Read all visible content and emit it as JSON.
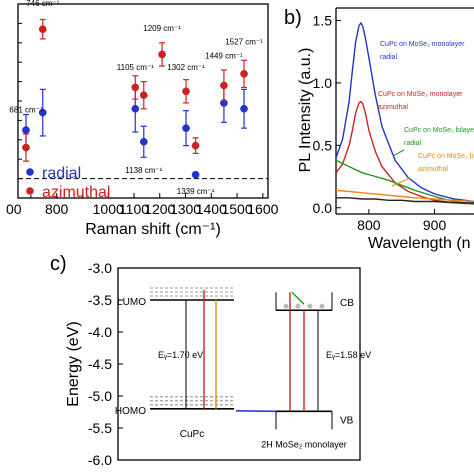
{
  "chart_data": [
    {
      "panel_label": "",
      "type": "scatter",
      "xlabel": "Raman shift (cm⁻¹)",
      "xlim": [
        650,
        1620
      ],
      "xticks": [
        800,
        1000,
        1100,
        1200,
        1300,
        1400,
        1500,
        1600
      ],
      "ylim": [
        0,
        10
      ],
      "legend": {
        "placement": "bottom-left",
        "entries": [
          "radial",
          "azimuthal"
        ]
      },
      "series": [
        {
          "name": "radial",
          "color": "#2233cc",
          "points": [
            {
              "x": 681,
              "y": 3.5,
              "err": 0.8
            },
            {
              "x": 746,
              "y": 4.4,
              "err": 1.2
            },
            {
              "x": 1105,
              "y": 4.6,
              "err": 1.2
            },
            {
              "x": 1138,
              "y": 2.9,
              "err": 0.8
            },
            {
              "x": 1302,
              "y": 3.6,
              "err": 0.9
            },
            {
              "x": 1339,
              "y": 1.2,
              "err": 0.0
            },
            {
              "x": 1449,
              "y": 4.9,
              "err": 1.0
            },
            {
              "x": 1527,
              "y": 4.6,
              "err": 1.0
            }
          ]
        },
        {
          "name": "azimuthal",
          "color": "#cc2222",
          "points": [
            {
              "x": 681,
              "y": 2.6,
              "err": 0.7
            },
            {
              "x": 746,
              "y": 8.7,
              "err": 0.5
            },
            {
              "x": 1105,
              "y": 5.7,
              "err": 0.6
            },
            {
              "x": 1138,
              "y": 5.3,
              "err": 0.7
            },
            {
              "x": 1209,
              "y": 7.4,
              "err": 0.6
            },
            {
              "x": 1302,
              "y": 5.5,
              "err": 0.6
            },
            {
              "x": 1339,
              "y": 2.7,
              "err": 0.4
            },
            {
              "x": 1449,
              "y": 5.8,
              "err": 0.8
            },
            {
              "x": 1527,
              "y": 6.4,
              "err": 0.7
            }
          ]
        }
      ],
      "peak_labels": [
        {
          "text": "746 cm⁻¹",
          "x": 746,
          "y": 9.9
        },
        {
          "text": "681 cm⁻¹",
          "x": 681,
          "y": 4.4
        },
        {
          "text": "1209 cm⁻¹",
          "x": 1209,
          "y": 8.6
        },
        {
          "text": "1105 cm⁻¹",
          "x": 1105,
          "y": 6.6
        },
        {
          "text": "1302 cm⁻¹",
          "x": 1302,
          "y": 6.6
        },
        {
          "text": "1449 cm⁻¹",
          "x": 1449,
          "y": 7.2
        },
        {
          "text": "1527 cm⁻¹",
          "x": 1527,
          "y": 7.9
        },
        {
          "text": "1138 cm⁻¹",
          "x": 1138,
          "y": 1.3
        },
        {
          "text": "1339 cm⁻¹",
          "x": 1339,
          "y": 0.2
        }
      ],
      "reference_line": {
        "y": 1.0,
        "style": "dashed"
      }
    },
    {
      "panel_label": "b)",
      "type": "line",
      "xlabel": "Wavelength (n",
      "ylabel": "PL Intensity (a.u.)",
      "xlim": [
        750,
        960
      ],
      "xticks": [
        800,
        900
      ],
      "ylim": [
        -0.05,
        1.6
      ],
      "yticks": [
        0.0,
        0.5,
        1.0,
        1.5
      ],
      "series": [
        {
          "name": "CuPc on MoSe₂ monolayer radial",
          "color": "#2233cc",
          "x": [
            750,
            760,
            770,
            775,
            780,
            785,
            788,
            791,
            795,
            800,
            810,
            820,
            840,
            860,
            880,
            900,
            930,
            960
          ],
          "y": [
            0.4,
            0.55,
            0.85,
            1.1,
            1.33,
            1.46,
            1.48,
            1.45,
            1.35,
            1.2,
            0.9,
            0.65,
            0.38,
            0.24,
            0.16,
            0.11,
            0.07,
            0.05
          ]
        },
        {
          "name": "CuPc on MoSe₂ monolayer azimuthal",
          "color": "#cc2222",
          "x": [
            750,
            760,
            770,
            775,
            780,
            785,
            788,
            791,
            795,
            800,
            810,
            820,
            840,
            860,
            880,
            900,
            930,
            960
          ],
          "y": [
            0.28,
            0.35,
            0.5,
            0.62,
            0.76,
            0.84,
            0.85,
            0.83,
            0.75,
            0.62,
            0.45,
            0.33,
            0.2,
            0.13,
            0.09,
            0.06,
            0.04,
            0.03
          ]
        },
        {
          "name": "CuPc on MoSe₂ bilayer radial",
          "color": "#229922",
          "x": [
            750,
            770,
            790,
            810,
            830,
            850,
            870,
            900,
            930,
            960
          ],
          "y": [
            0.38,
            0.33,
            0.28,
            0.25,
            0.22,
            0.18,
            0.14,
            0.09,
            0.05,
            0.03
          ]
        },
        {
          "name": "CuPc on MoSe₂ bilayer azimuthal",
          "color": "#ee8811",
          "x": [
            750,
            770,
            790,
            810,
            830,
            850,
            870,
            900,
            930,
            960
          ],
          "y": [
            0.14,
            0.13,
            0.12,
            0.11,
            0.1,
            0.09,
            0.08,
            0.07,
            0.06,
            0.05
          ]
        },
        {
          "name": "",
          "color": "#222222",
          "x": [
            750,
            770,
            790,
            810,
            830,
            850,
            870,
            900,
            930,
            960
          ],
          "y": [
            0.08,
            0.08,
            0.07,
            0.07,
            0.06,
            0.06,
            0.05,
            0.05,
            0.04,
            0.04
          ]
        }
      ],
      "legend_labels": [
        {
          "line1": "CuPc on MoSe₂ monolayer",
          "line2": "radial",
          "color": "#2233cc"
        },
        {
          "line1": "CuPc on MoSe₂ monolayer",
          "line2": "azimuthal",
          "color": "#cc2222"
        },
        {
          "line1": "CuPc on MoSe₂ bilayer",
          "line2": "radial",
          "color": "#229922"
        },
        {
          "line1": "CuPc on MoSe₂ bi",
          "line2": "azimuthal",
          "color": "#ee8811"
        }
      ]
    },
    {
      "panel_label": "c)",
      "type": "diagram",
      "ylabel": "Energy (eV)",
      "ylim": [
        -6.0,
        -3.0
      ],
      "yticks": [
        -3.0,
        -3.5,
        -4.0,
        -4.5,
        -5.0,
        -5.5,
        -6.0
      ],
      "levels": {
        "cupc_lumo": -3.5,
        "cupc_homo": -5.2,
        "mose2_cb": -3.66,
        "mose2_vb": -5.24
      },
      "labels": {
        "lumo": "LUMO",
        "homo": "HOMO",
        "cupc": "CuPc",
        "cb": "CB",
        "vb": "VB",
        "mose2": "2H MoSe₂ monolayer",
        "cupc_gap": "Eᵧ=1.70 eV",
        "mose2_gap": "Eᵧ=1.58 eV"
      }
    }
  ]
}
